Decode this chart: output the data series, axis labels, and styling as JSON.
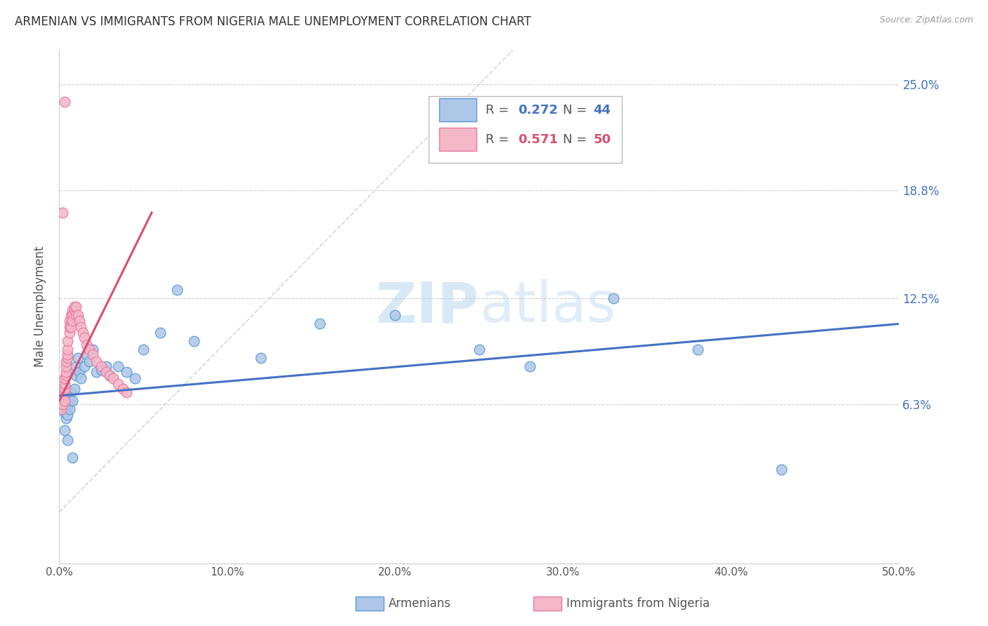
{
  "title": "ARMENIAN VS IMMIGRANTS FROM NIGERIA MALE UNEMPLOYMENT CORRELATION CHART",
  "source": "Source: ZipAtlas.com",
  "ylabel": "Male Unemployment",
  "watermark_zip": "ZIP",
  "watermark_atlas": "atlas",
  "xlim": [
    0.0,
    0.5
  ],
  "ylim": [
    -0.03,
    0.27
  ],
  "yticks": [
    0.063,
    0.125,
    0.188,
    0.25
  ],
  "ytick_labels": [
    "6.3%",
    "12.5%",
    "18.8%",
    "25.0%"
  ],
  "xticks": [
    0.0,
    0.1,
    0.2,
    0.3,
    0.4,
    0.5
  ],
  "xtick_labels": [
    "0.0%",
    "10.0%",
    "20.0%",
    "30.0%",
    "40.0%",
    "50.0%"
  ],
  "grid_color": "#cccccc",
  "armenian_color": "#aec6e8",
  "nigeria_color": "#f4b8c8",
  "armenian_edge": "#5b9bd5",
  "nigeria_edge": "#e879a0",
  "trend_blue": "#4472c4",
  "trend_pink": "#d94f6e",
  "diag_color": "#cccccc",
  "armenian_x": [
    0.001,
    0.002,
    0.003,
    0.003,
    0.004,
    0.004,
    0.005,
    0.005,
    0.006,
    0.006,
    0.007,
    0.008,
    0.009,
    0.01,
    0.01,
    0.011,
    0.012,
    0.013,
    0.015,
    0.016,
    0.018,
    0.02,
    0.022,
    0.025,
    0.028,
    0.03,
    0.035,
    0.04,
    0.045,
    0.05,
    0.06,
    0.07,
    0.08,
    0.12,
    0.155,
    0.2,
    0.25,
    0.28,
    0.33,
    0.38,
    0.43,
    0.003,
    0.005,
    0.008
  ],
  "armenian_y": [
    0.063,
    0.063,
    0.062,
    0.058,
    0.06,
    0.055,
    0.063,
    0.057,
    0.065,
    0.06,
    0.07,
    0.065,
    0.072,
    0.08,
    0.085,
    0.09,
    0.082,
    0.078,
    0.085,
    0.092,
    0.088,
    0.095,
    0.082,
    0.083,
    0.085,
    0.08,
    0.085,
    0.082,
    0.078,
    0.095,
    0.105,
    0.13,
    0.1,
    0.09,
    0.11,
    0.115,
    0.095,
    0.085,
    0.125,
    0.095,
    0.025,
    0.048,
    0.042,
    0.032
  ],
  "nigeria_x": [
    0.001,
    0.001,
    0.002,
    0.002,
    0.002,
    0.002,
    0.003,
    0.003,
    0.003,
    0.003,
    0.003,
    0.004,
    0.004,
    0.004,
    0.004,
    0.005,
    0.005,
    0.005,
    0.005,
    0.006,
    0.006,
    0.006,
    0.007,
    0.007,
    0.007,
    0.008,
    0.008,
    0.008,
    0.009,
    0.009,
    0.01,
    0.01,
    0.011,
    0.012,
    0.013,
    0.014,
    0.015,
    0.016,
    0.018,
    0.02,
    0.022,
    0.025,
    0.028,
    0.03,
    0.032,
    0.035,
    0.038,
    0.04,
    0.002,
    0.003
  ],
  "nigeria_y": [
    0.063,
    0.06,
    0.065,
    0.068,
    0.072,
    0.063,
    0.07,
    0.072,
    0.075,
    0.078,
    0.065,
    0.08,
    0.082,
    0.085,
    0.088,
    0.09,
    0.092,
    0.095,
    0.1,
    0.105,
    0.108,
    0.112,
    0.11,
    0.115,
    0.108,
    0.118,
    0.115,
    0.112,
    0.118,
    0.12,
    0.115,
    0.12,
    0.115,
    0.112,
    0.108,
    0.105,
    0.102,
    0.098,
    0.095,
    0.092,
    0.088,
    0.085,
    0.082,
    0.08,
    0.078,
    0.075,
    0.072,
    0.07,
    0.175,
    0.24
  ],
  "nigeria_trend_x": [
    0.0,
    0.055
  ],
  "nigeria_trend_y": [
    0.065,
    0.175
  ],
  "armenian_trend_x": [
    0.0,
    0.5
  ],
  "armenian_trend_y": [
    0.068,
    0.11
  ]
}
